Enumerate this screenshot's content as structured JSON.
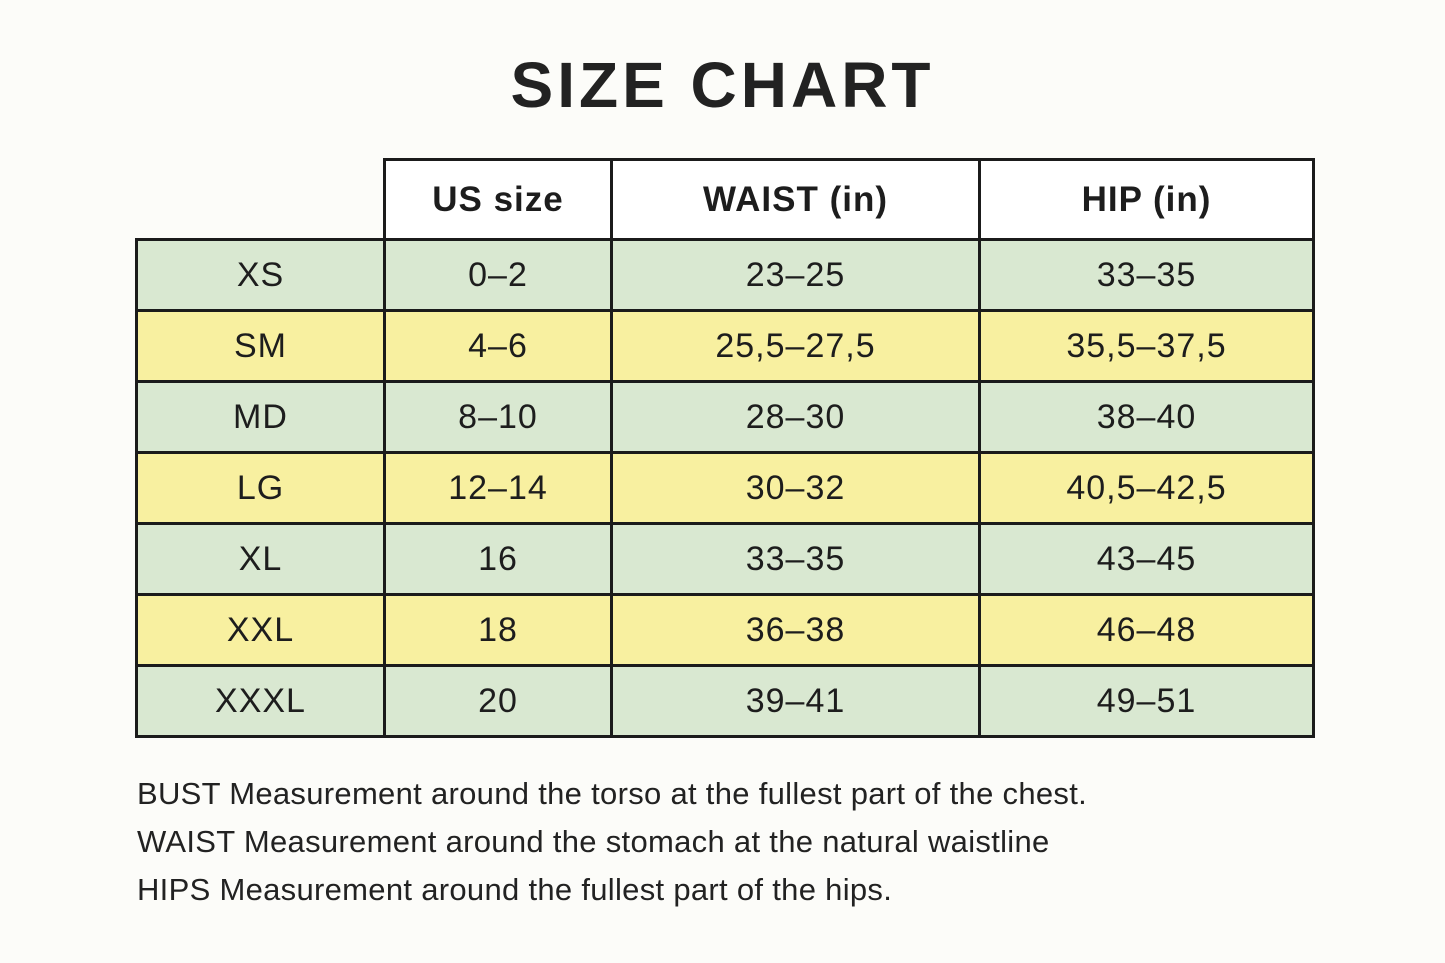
{
  "page": {
    "title": "SIZE CHART"
  },
  "colors": {
    "row_green": "#d9e8d1",
    "row_yellow": "#f8f0a0",
    "border": "#1b1b1b",
    "background": "#fcfcf9",
    "text": "#1d1d1d"
  },
  "table": {
    "headers": [
      "US size",
      "WAIST (in)",
      "HIP (in)"
    ],
    "rows": [
      {
        "size": "XS",
        "us": "0–2",
        "waist": "23–25",
        "hip": "33–35"
      },
      {
        "size": "SM",
        "us": "4–6",
        "waist": "25,5–27,5",
        "hip": "35,5–37,5"
      },
      {
        "size": "MD",
        "us": "8–10",
        "waist": "28–30",
        "hip": "38–40"
      },
      {
        "size": "LG",
        "us": "12–14",
        "waist": "30–32",
        "hip": "40,5–42,5"
      },
      {
        "size": "XL",
        "us": "16",
        "waist": "33–35",
        "hip": "43–45"
      },
      {
        "size": "XXL",
        "us": "18",
        "waist": "36–38",
        "hip": "46–48"
      },
      {
        "size": "XXXL",
        "us": "20",
        "waist": "39–41",
        "hip": "49–51"
      }
    ]
  },
  "notes": [
    "BUST Measurement around the torso at the fullest part of the chest.",
    "WAIST Measurement around the stomach at the natural waistline",
    "HIPS Measurement around the fullest part of the hips."
  ]
}
